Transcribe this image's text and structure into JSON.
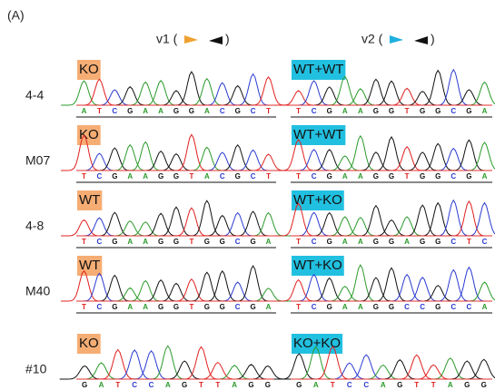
{
  "panel_label": "(A)",
  "columns": [
    {
      "open": "v1 (",
      "close": ")"
    },
    {
      "open": "v2 (",
      "close": ")"
    }
  ],
  "rows": [
    {
      "label": "4-4",
      "left": {
        "tag": "KO",
        "bases": [
          "A",
          "T",
          "C",
          "G",
          "A",
          "A",
          "G",
          "G",
          "A",
          "C",
          "G",
          "C",
          "T"
        ]
      },
      "right": {
        "tag": "WT+WT",
        "bases": [
          "T",
          "C",
          "G",
          "A",
          "A",
          "G",
          "G",
          "T",
          "G",
          "G",
          "C",
          "G",
          "A"
        ]
      }
    },
    {
      "label": "M07",
      "left": {
        "tag": "KO",
        "bases": [
          "T",
          "C",
          "G",
          "A",
          "A",
          "G",
          "G",
          "T",
          "A",
          "C",
          "G",
          "C",
          "T"
        ]
      },
      "right": {
        "tag": "WT+WT",
        "bases": [
          "T",
          "C",
          "G",
          "A",
          "A",
          "G",
          "G",
          "T",
          "G",
          "G",
          "C",
          "G",
          "A"
        ]
      }
    },
    {
      "label": "4-8",
      "left": {
        "tag": "WT",
        "bases": [
          "T",
          "C",
          "G",
          "A",
          "A",
          "G",
          "G",
          "T",
          "G",
          "G",
          "C",
          "G",
          "A"
        ]
      },
      "right": {
        "tag": "WT+KO",
        "bases": [
          "T",
          "C",
          "G",
          "A",
          "A",
          "G",
          "G",
          "A",
          "G",
          "G",
          "C",
          "T",
          "C"
        ]
      }
    },
    {
      "label": "M40",
      "left": {
        "tag": "WT",
        "bases": [
          "T",
          "C",
          "G",
          "A",
          "A",
          "G",
          "G",
          "T",
          "G",
          "G",
          "C",
          "G",
          "A"
        ]
      },
      "right": {
        "tag": "WT+KO",
        "bases": [
          "T",
          "C",
          "G",
          "A",
          "A",
          "G",
          "G",
          "C",
          "C",
          "G",
          "C",
          "C",
          "A"
        ]
      }
    },
    {
      "label": "#10",
      "left": {
        "tag": "KO",
        "bases": [
          "G",
          "A",
          "T",
          "C",
          "C",
          "A",
          "G",
          "T",
          "T",
          "A",
          "G",
          "G"
        ]
      },
      "right": {
        "tag": "KO+KO",
        "bases": [
          "G",
          "A",
          "T",
          "C",
          "C",
          "A",
          "G",
          "T",
          "T",
          "A",
          "G",
          "G"
        ]
      }
    }
  ]
}
